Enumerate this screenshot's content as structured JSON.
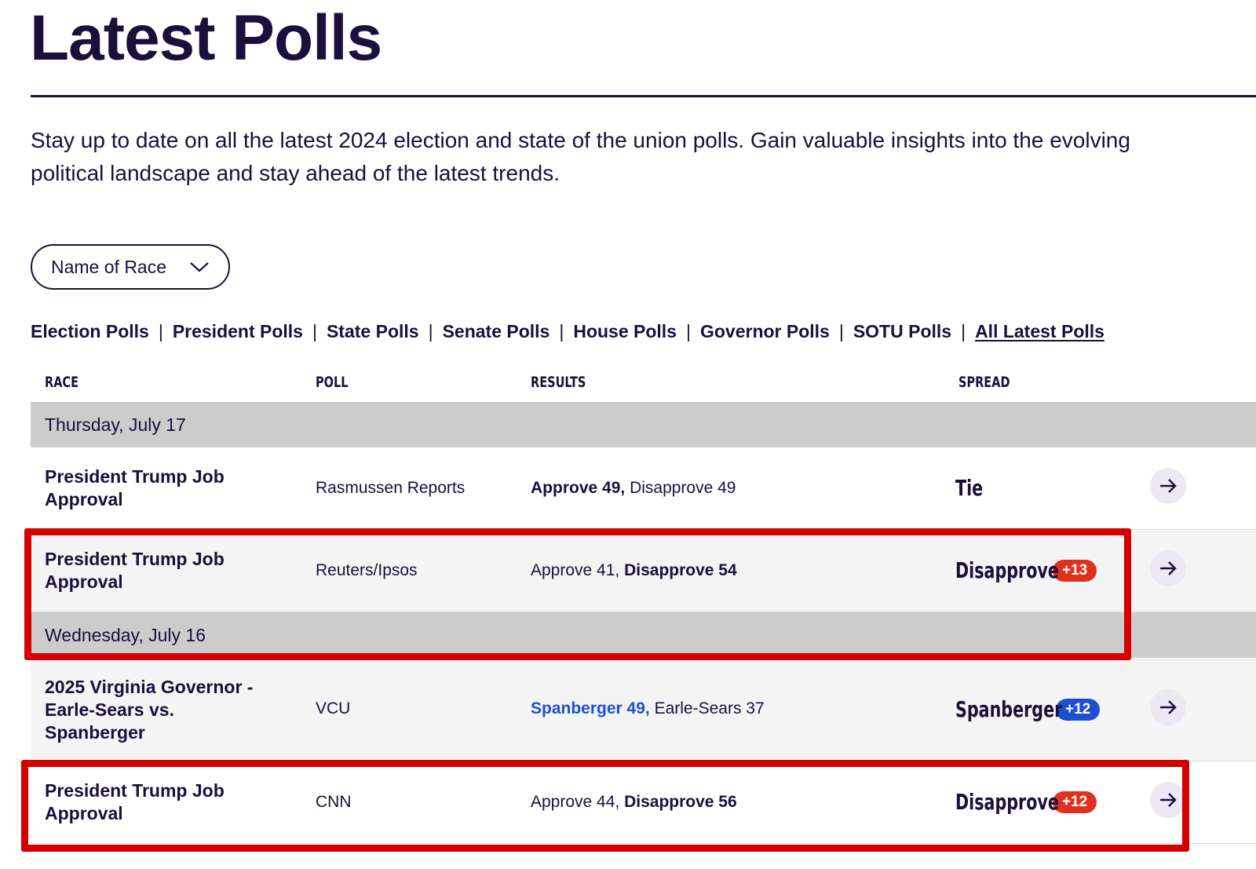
{
  "page": {
    "title": "Latest Polls",
    "intro": "Stay up to date on all the latest 2024 election and state of the union polls. Gain valuable insights into the evolving political landscape and stay ahead of the latest trends."
  },
  "race_select": {
    "label": "Name of Race",
    "icon": "chevron-down-icon"
  },
  "filters": [
    {
      "label": "Election Polls"
    },
    {
      "label": "President Polls"
    },
    {
      "label": "State Polls"
    },
    {
      "label": "Senate Polls"
    },
    {
      "label": "House Polls"
    },
    {
      "label": "Governor Polls"
    },
    {
      "label": "SOTU Polls"
    },
    {
      "label": "All Latest Polls",
      "active": true
    }
  ],
  "table": {
    "headers": {
      "race": "RACE",
      "poll": "POLL",
      "results": "RESULTS",
      "spread": "SPREAD"
    },
    "dates": [
      "Thursday, July 17",
      "Wednesday, July 16"
    ],
    "rows": [
      {
        "race": "President Trump Job Approval",
        "poll": "Rasmussen Reports",
        "result_a": "Approve 49,",
        "result_b": "Disapprove 49",
        "spread_label": "Tie",
        "spread_value": ""
      },
      {
        "race": "President Trump Job Approval",
        "poll": "Reuters/Ipsos",
        "result_a": "Approve 41,",
        "result_b": "Disapprove 54",
        "spread_label": "Disapprove",
        "spread_value": "+13"
      },
      {
        "race": "2025 Virginia Governor - Earle-Sears vs. Spanberger",
        "poll": "VCU",
        "result_a": "Spanberger 49,",
        "result_b": "Earle-Sears 37",
        "spread_label": "Spanberger",
        "spread_value": "+12"
      },
      {
        "race": "President Trump Job Approval",
        "poll": "CNN",
        "result_a": "Approve 44,",
        "result_b": "Disapprove 56",
        "spread_label": "Disapprove",
        "spread_value": "+12"
      }
    ]
  },
  "colors": {
    "navy": "#1b0f3b",
    "republican_red": "#e0301e",
    "democrat_blue": "#1f4fd1",
    "annotation_red": "#d40000",
    "date_row_gray": "#cccccc",
    "highlight_row_bg": "#f4f4f4"
  }
}
